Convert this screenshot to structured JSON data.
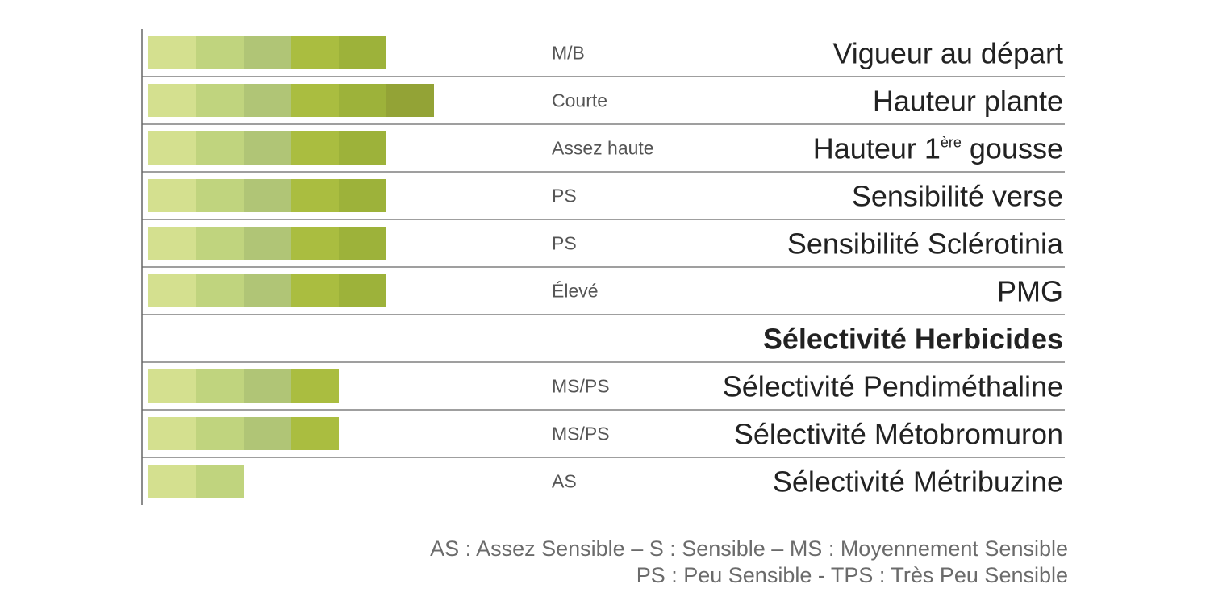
{
  "chart_data": {
    "type": "bar",
    "max_segments": 6,
    "segment_colors": [
      "#d4e08f",
      "#c0d47e",
      "#b0c576",
      "#aabd40",
      "#9db23a",
      "#93a336"
    ],
    "rows": [
      {
        "label": "Vigueur au départ",
        "rating": "M/B",
        "value": 5,
        "header": false
      },
      {
        "label": "Hauteur plante",
        "rating": "Courte",
        "value": 6,
        "header": false
      },
      {
        "label": "Hauteur 1",
        "label_sup": "ère",
        "label_after": " gousse",
        "rating": "Assez haute",
        "value": 5,
        "header": false
      },
      {
        "label": "Sensibilité verse",
        "rating": "PS",
        "value": 5,
        "header": false
      },
      {
        "label": "Sensibilité Sclérotinia",
        "rating": "PS",
        "value": 5,
        "header": false
      },
      {
        "label": "PMG",
        "rating": "Élevé",
        "value": 5,
        "header": false
      },
      {
        "label": "Sélectivité Herbicides",
        "rating": "",
        "value": 0,
        "header": true
      },
      {
        "label": "Sélectivité Pendiméthaline",
        "rating": "MS/PS",
        "value": 4,
        "header": false
      },
      {
        "label": "Sélectivité Métobromuron",
        "rating": "MS/PS",
        "value": 4,
        "header": false
      },
      {
        "label": "Sélectivité Métribuzine",
        "rating": "AS",
        "value": 2,
        "header": false
      }
    ]
  },
  "legend": {
    "line1": "AS : Assez Sensible –  S : Sensible – MS : Moyennement Sensible",
    "line2": "PS : Peu Sensible - TPS : Très Peu Sensible"
  }
}
